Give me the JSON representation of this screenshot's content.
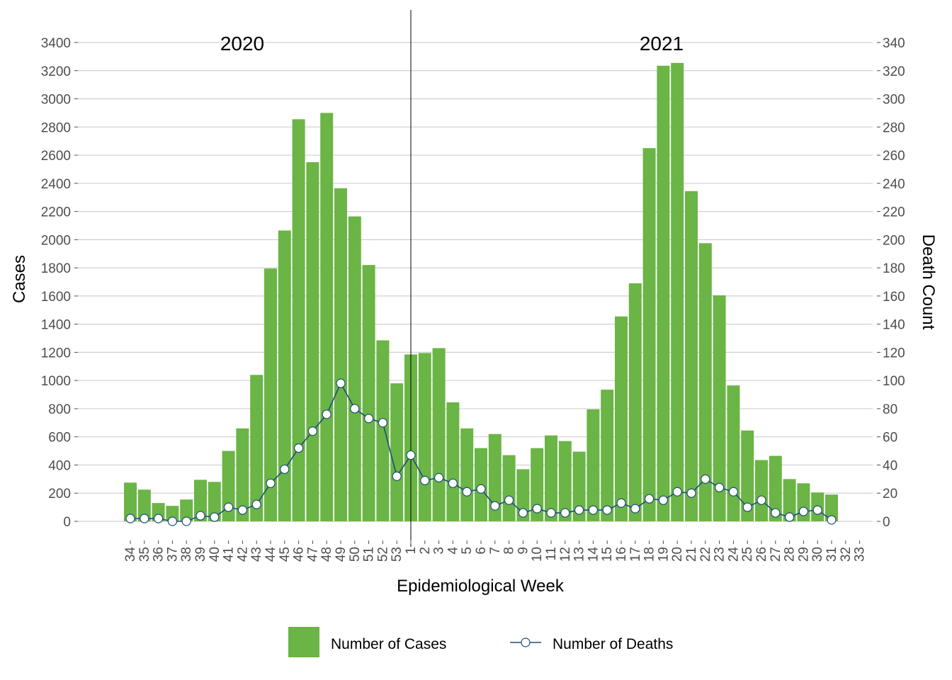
{
  "chart_data": {
    "type": "bar",
    "xlabel": "Epidemiological Week",
    "ylabel": "Cases",
    "ylabel_right": "Death Count",
    "ylim": [
      0,
      3400
    ],
    "ylim_right": [
      0,
      340
    ],
    "y_ticks": [
      0,
      200,
      400,
      600,
      800,
      1000,
      1200,
      1400,
      1600,
      1800,
      2000,
      2200,
      2400,
      2600,
      2800,
      3000,
      3200,
      3400
    ],
    "y_ticks_right": [
      0,
      20,
      40,
      60,
      80,
      100,
      120,
      140,
      160,
      180,
      200,
      220,
      240,
      260,
      280,
      300,
      320,
      340
    ],
    "grid": "horizontal",
    "legend_position": "bottom",
    "year_labels": [
      "2020",
      "2021"
    ],
    "colors": {
      "cases": "#6ab545",
      "deaths_line": "#1f4e79",
      "deaths_marker_fill": "#ffffff",
      "grid": "#d0d0d0",
      "divider": "#000000"
    },
    "categories": [
      "34",
      "35",
      "36",
      "37",
      "38",
      "39",
      "40",
      "41",
      "42",
      "43",
      "44",
      "45",
      "46",
      "47",
      "48",
      "49",
      "50",
      "51",
      "52",
      "53",
      "1",
      "2",
      "3",
      "4",
      "5",
      "6",
      "7",
      "8",
      "9",
      "10",
      "11",
      "12",
      "13",
      "14",
      "15",
      "16",
      "17",
      "18",
      "19",
      "20",
      "21",
      "22",
      "23",
      "24",
      "25",
      "26",
      "27",
      "28",
      "29",
      "30",
      "31",
      "32",
      "33"
    ],
    "series": [
      {
        "name": "Number of Cases",
        "axis": "left",
        "type": "bar",
        "values": [
          275,
          225,
          130,
          110,
          155,
          295,
          280,
          500,
          660,
          1040,
          1795,
          2065,
          2855,
          2550,
          2900,
          2365,
          2165,
          1820,
          1285,
          980,
          1185,
          1195,
          1230,
          845,
          660,
          520,
          620,
          470,
          370,
          520,
          610,
          570,
          495,
          795,
          935,
          1455,
          1690,
          2650,
          3235,
          3255,
          2345,
          1975,
          1605,
          965,
          645,
          435,
          465,
          300,
          270,
          205,
          190,
          null,
          null
        ]
      },
      {
        "name": "Number of Deaths",
        "axis": "right",
        "type": "line",
        "values": [
          2,
          2,
          2,
          0,
          0,
          4,
          3,
          10,
          8,
          12,
          27,
          37,
          52,
          64,
          76,
          98,
          80,
          73,
          70,
          32,
          47,
          29,
          31,
          27,
          21,
          23,
          11,
          15,
          6,
          9,
          6,
          6,
          8,
          8,
          8,
          13,
          9,
          16,
          15,
          21,
          20,
          30,
          24,
          21,
          10,
          15,
          6,
          3,
          7,
          8,
          1,
          null,
          null
        ]
      }
    ]
  }
}
